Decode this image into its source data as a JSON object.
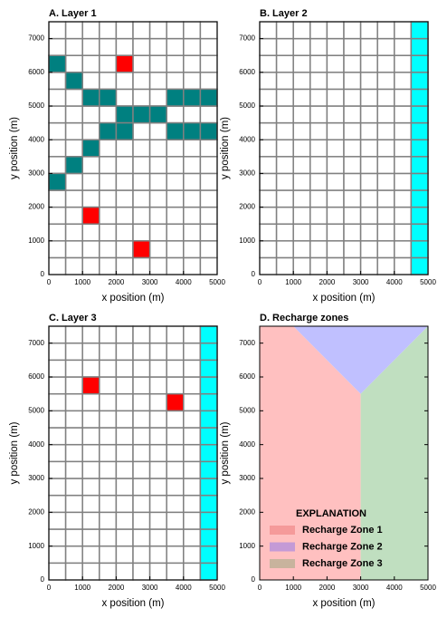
{
  "chart_data": [
    {
      "type": "grid",
      "title": "A. Layer 1",
      "xlabel": "x position (m)",
      "ylabel": "y position (m)",
      "xlim": [
        0,
        5000
      ],
      "ylim": [
        0,
        7500
      ],
      "xticks": [
        0,
        1000,
        2000,
        3000,
        4000,
        5000
      ],
      "yticks": [
        0,
        1000,
        2000,
        3000,
        4000,
        5000,
        6000,
        7000
      ],
      "cell_size": 500,
      "grid_color": "#808080",
      "series": [
        {
          "color": "#008080",
          "cells": [
            [
              0,
              6000
            ],
            [
              500,
              5500
            ],
            [
              1000,
              5000
            ],
            [
              1500,
              5000
            ],
            [
              3500,
              5000
            ],
            [
              4000,
              5000
            ],
            [
              4500,
              5000
            ],
            [
              2000,
              4500
            ],
            [
              2500,
              4500
            ],
            [
              3000,
              4500
            ],
            [
              1500,
              4000
            ],
            [
              2000,
              4000
            ],
            [
              3500,
              4000
            ],
            [
              4000,
              4000
            ],
            [
              4500,
              4000
            ],
            [
              1000,
              3500
            ],
            [
              500,
              3000
            ],
            [
              0,
              2500
            ]
          ]
        },
        {
          "color": "#ff0000",
          "cells": [
            [
              2000,
              6000
            ],
            [
              1000,
              1500
            ],
            [
              2500,
              500
            ]
          ]
        }
      ]
    },
    {
      "type": "grid",
      "title": "B. Layer 2",
      "xlabel": "x position (m)",
      "ylabel": "y position (m)",
      "xlim": [
        0,
        5000
      ],
      "ylim": [
        0,
        7500
      ],
      "xticks": [
        0,
        1000,
        2000,
        3000,
        4000,
        5000
      ],
      "yticks": [
        0,
        1000,
        2000,
        3000,
        4000,
        5000,
        6000,
        7000
      ],
      "cell_size": 500,
      "grid_color": "#808080",
      "series": [
        {
          "color": "#00ffff",
          "cells": [
            [
              4500,
              0
            ],
            [
              4500,
              500
            ],
            [
              4500,
              1000
            ],
            [
              4500,
              1500
            ],
            [
              4500,
              2000
            ],
            [
              4500,
              2500
            ],
            [
              4500,
              3000
            ],
            [
              4500,
              3500
            ],
            [
              4500,
              4000
            ],
            [
              4500,
              4500
            ],
            [
              4500,
              5000
            ],
            [
              4500,
              5500
            ],
            [
              4500,
              6000
            ],
            [
              4500,
              6500
            ],
            [
              4500,
              7000
            ]
          ]
        }
      ]
    },
    {
      "type": "grid",
      "title": "C. Layer 3",
      "xlabel": "x position (m)",
      "ylabel": "y position (m)",
      "xlim": [
        0,
        5000
      ],
      "ylim": [
        0,
        7500
      ],
      "xticks": [
        0,
        1000,
        2000,
        3000,
        4000,
        5000
      ],
      "yticks": [
        0,
        1000,
        2000,
        3000,
        4000,
        5000,
        6000,
        7000
      ],
      "cell_size": 500,
      "grid_color": "#808080",
      "series": [
        {
          "color": "#00ffff",
          "cells": [
            [
              4500,
              0
            ],
            [
              4500,
              500
            ],
            [
              4500,
              1000
            ],
            [
              4500,
              1500
            ],
            [
              4500,
              2000
            ],
            [
              4500,
              2500
            ],
            [
              4500,
              3000
            ],
            [
              4500,
              3500
            ],
            [
              4500,
              4000
            ],
            [
              4500,
              4500
            ],
            [
              4500,
              5000
            ],
            [
              4500,
              5500
            ],
            [
              4500,
              6000
            ],
            [
              4500,
              6500
            ],
            [
              4500,
              7000
            ]
          ]
        },
        {
          "color": "#ff0000",
          "cells": [
            [
              1000,
              5500
            ],
            [
              3500,
              5000
            ]
          ]
        }
      ]
    },
    {
      "type": "polygon",
      "title": "D. Recharge zones",
      "xlabel": "x position (m)",
      "ylabel": "y position (m)",
      "xlim": [
        0,
        5000
      ],
      "ylim": [
        0,
        7500
      ],
      "xticks": [
        0,
        1000,
        2000,
        3000,
        4000,
        5000
      ],
      "yticks": [
        0,
        1000,
        2000,
        3000,
        4000,
        5000,
        6000,
        7000
      ],
      "legend_title": "EXPLANATION",
      "legend": "lower left",
      "series": [
        {
          "name": "Recharge Zone 1",
          "color": "#ffc0c0",
          "legend_color": "#f59a9a",
          "x": [
            0,
            0,
            1000,
            3000,
            3000
          ],
          "y": [
            0,
            7500,
            7500,
            5500,
            0
          ]
        },
        {
          "name": "Recharge Zone 2",
          "color": "#c0c0ff",
          "legend_color": "#c49ad6",
          "x": [
            1000,
            5000,
            3000
          ],
          "y": [
            7500,
            7500,
            5500
          ]
        },
        {
          "name": "Recharge Zone 3",
          "color": "#c0dfc0",
          "legend_color": "#c8b39d",
          "x": [
            3000,
            5000,
            5000,
            3000
          ],
          "y": [
            0,
            0,
            7500,
            5500
          ]
        }
      ]
    }
  ]
}
